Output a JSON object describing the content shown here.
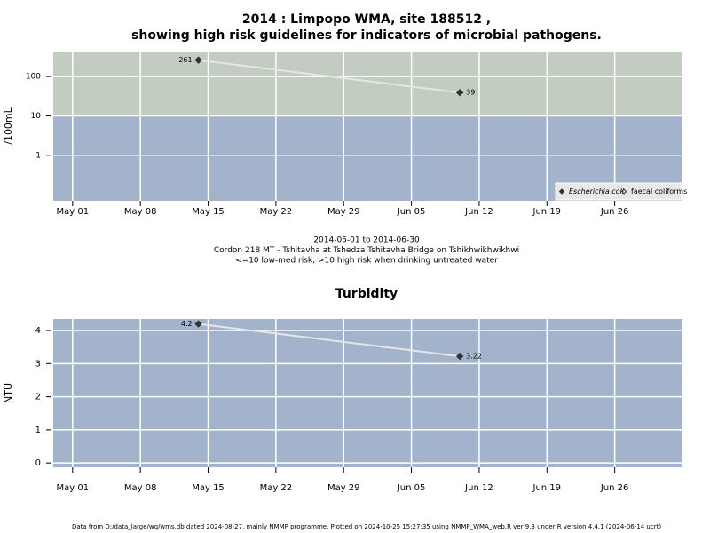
{
  "chart_data": [
    {
      "type": "line",
      "title": "2014 : Limpopo WMA, site 188512 ,",
      "subtitle": "showing high risk guidelines for indicators of microbial pathogens.",
      "y_label": "/100mL",
      "log_y": true,
      "ylim": [
        0.07,
        430
      ],
      "yticks": [
        1,
        10,
        100
      ],
      "xlim": [
        "2014-04-29",
        "2014-07-03"
      ],
      "xticks": [
        {
          "value": "2014-05-01",
          "label": "May 01"
        },
        {
          "value": "2014-05-08",
          "label": "May 08"
        },
        {
          "value": "2014-05-15",
          "label": "May 15"
        },
        {
          "value": "2014-05-22",
          "label": "May 22"
        },
        {
          "value": "2014-05-29",
          "label": "May 29"
        },
        {
          "value": "2014-06-05",
          "label": "Jun 05"
        },
        {
          "value": "2014-06-12",
          "label": "Jun 12"
        },
        {
          "value": "2014-06-19",
          "label": "Jun 19"
        },
        {
          "value": "2014-06-26",
          "label": "Jun 26"
        }
      ],
      "grid": true,
      "background": "#a3b3cc",
      "highlight_above": 10,
      "highlight_color": "#c2ccc0",
      "line_color": "#e6e6e6",
      "x": [
        "2014-05-14",
        "2014-06-10"
      ],
      "series": [
        {
          "name": "Escherichia coli",
          "color": "#333333",
          "marker": "filled",
          "values": [
            261,
            39
          ]
        },
        {
          "name": "faecal coliforms",
          "color": "#333333",
          "marker": "hollow",
          "values": [
            null,
            null
          ]
        }
      ],
      "legend": "bottom-right",
      "notes": [
        "2014-05-01 to 2014-06-30",
        "Cordon 218 MT - Tshitavha at Tshedza Tshitavha Bridge on Tshikhwikhwikhwi",
        "<=10 low-med risk; >10 high risk when drinking untreated water"
      ]
    },
    {
      "type": "line",
      "title": "Turbidity",
      "y_label": "NTU",
      "log_y": false,
      "ylim": [
        -0.13,
        4.35
      ],
      "yticks": [
        0,
        1,
        2,
        3,
        4
      ],
      "xlim": [
        "2014-04-29",
        "2014-07-03"
      ],
      "xticks": [
        {
          "value": "2014-05-01",
          "label": "May 01"
        },
        {
          "value": "2014-05-08",
          "label": "May 08"
        },
        {
          "value": "2014-05-15",
          "label": "May 15"
        },
        {
          "value": "2014-05-22",
          "label": "May 22"
        },
        {
          "value": "2014-05-29",
          "label": "May 29"
        },
        {
          "value": "2014-06-05",
          "label": "Jun 05"
        },
        {
          "value": "2014-06-12",
          "label": "Jun 12"
        },
        {
          "value": "2014-06-19",
          "label": "Jun 19"
        },
        {
          "value": "2014-06-26",
          "label": "Jun 26"
        }
      ],
      "grid": true,
      "background": "#a3b3cc",
      "line_color": "#e6e6e6",
      "x": [
        "2014-05-14",
        "2014-06-10"
      ],
      "values": [
        4.2,
        3.22
      ],
      "color": "#333333"
    }
  ],
  "footer": "Data from D:/data_large/wq/wms.db dated 2024-08-27, mainly NMMP programme. Plotted on 2024-10-25 15:27:35 using NMMP_WMA_web.R ver 9.3 under R version 4.4.1 (2024-06-14 ucrt)"
}
